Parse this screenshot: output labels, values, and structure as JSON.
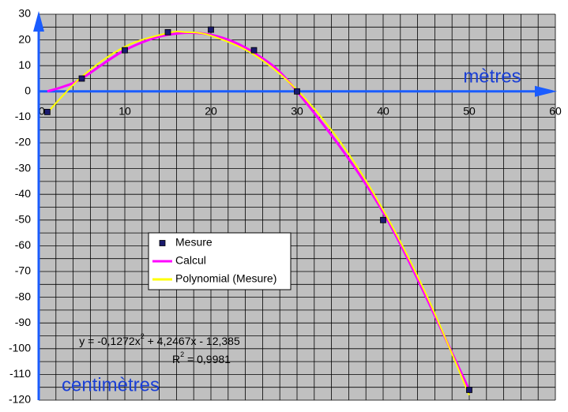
{
  "chart_data": {
    "type": "line",
    "x_label": "mètres",
    "y_label": "centimètres",
    "xlim": [
      0,
      60
    ],
    "xticks": [
      0,
      10,
      20,
      30,
      40,
      50,
      60
    ],
    "ylim": [
      -120,
      30
    ],
    "yticks": [
      -120,
      -110,
      -100,
      -90,
      -80,
      -70,
      -60,
      -50,
      -40,
      -30,
      -20,
      -10,
      0,
      10,
      20,
      30
    ],
    "grid": true,
    "legend": "center-left",
    "series": [
      {
        "name": "Mesure",
        "style": "marker",
        "color": "#1a1a6e",
        "x": [
          1,
          5,
          10,
          15,
          20,
          25,
          30,
          40,
          50
        ],
        "values": [
          -8,
          5,
          16,
          23,
          24,
          16,
          0,
          -50,
          -116
        ]
      },
      {
        "name": "Calcul",
        "style": "line",
        "color": "#ff00ff",
        "x": [
          1,
          3,
          5,
          10,
          15,
          20,
          25,
          30,
          40,
          50
        ],
        "values": [
          0,
          2,
          5,
          16,
          22,
          22,
          15,
          0,
          -47,
          -116
        ]
      },
      {
        "name": "Polynomial (Mesure)",
        "style": "line",
        "color": "#ffff00",
        "x": [
          1,
          5,
          10,
          15,
          17,
          20,
          25,
          30,
          35,
          40,
          45,
          50
        ],
        "values": [
          -8.27,
          5.67,
          17.36,
          22.69,
          23.04,
          21.67,
          14.28,
          0.53,
          -19.58,
          -46.04,
          -78.87,
          -118.05
        ]
      }
    ],
    "equation": [
      "y = -0,1272x",
      "2",
      " + 4,2467x - 12,385"
    ],
    "r_squared": [
      "R",
      "2",
      " = 0,9981"
    ]
  }
}
